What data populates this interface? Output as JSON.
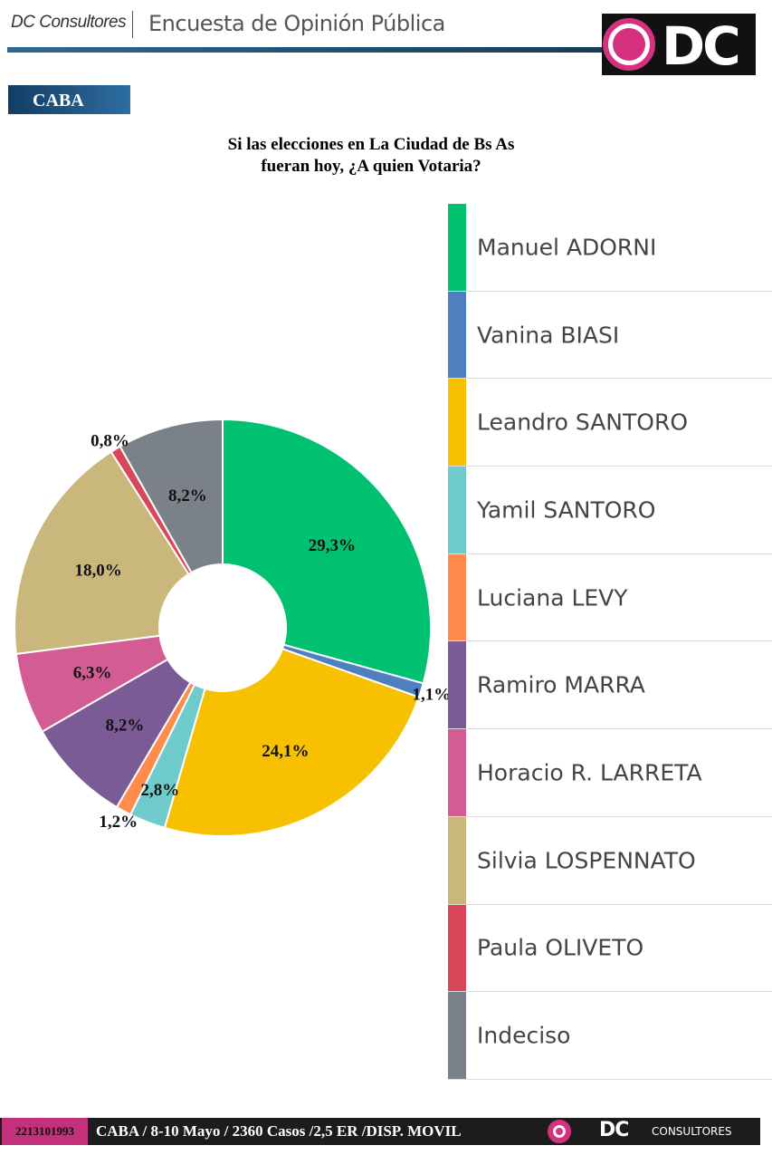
{
  "header": {
    "brand": "DC Consultores",
    "title": "Encuesta de Opinión Pública",
    "logo_text": "DC"
  },
  "region": "CABA",
  "chart_data": {
    "type": "pie",
    "title_lines": [
      "Si las elecciones en La Ciudad de Bs As",
      "fueran hoy, ¿A quien Votaria?"
    ],
    "donut": true,
    "legend_position": "right",
    "categories": [
      "Manuel ADORNI",
      "Vanina BIASI",
      "Leandro SANTORO",
      "Yamil SANTORO",
      "Luciana LEVY",
      "Ramiro MARRA",
      "Horacio R. LARRETA",
      "Silvia LOSPENNATO",
      "Paula OLIVETO",
      "Indeciso"
    ],
    "values": [
      29.3,
      1.1,
      24.1,
      2.8,
      1.2,
      8.2,
      6.3,
      18.0,
      0.8,
      8.2
    ],
    "labels": [
      "29,3%",
      "1,1%",
      "24,1%",
      "2,8%",
      "1,2%",
      "8,2%",
      "6,3%",
      "18,0%",
      "0,8%",
      "8,2%"
    ],
    "colors": [
      "#00c170",
      "#4e7fbf",
      "#f7c000",
      "#6fcbcb",
      "#ff8c4c",
      "#7b5b96",
      "#d35c94",
      "#c9b77c",
      "#d9475a",
      "#7b8189"
    ]
  },
  "footer": {
    "phone": "2213101993",
    "info": "CABA / 8-10 Mayo  /  2360 Casos  /2,5 ER /DISP. MOVIL",
    "logo_text": "DC",
    "logo_sub": "CONSULTORES"
  }
}
